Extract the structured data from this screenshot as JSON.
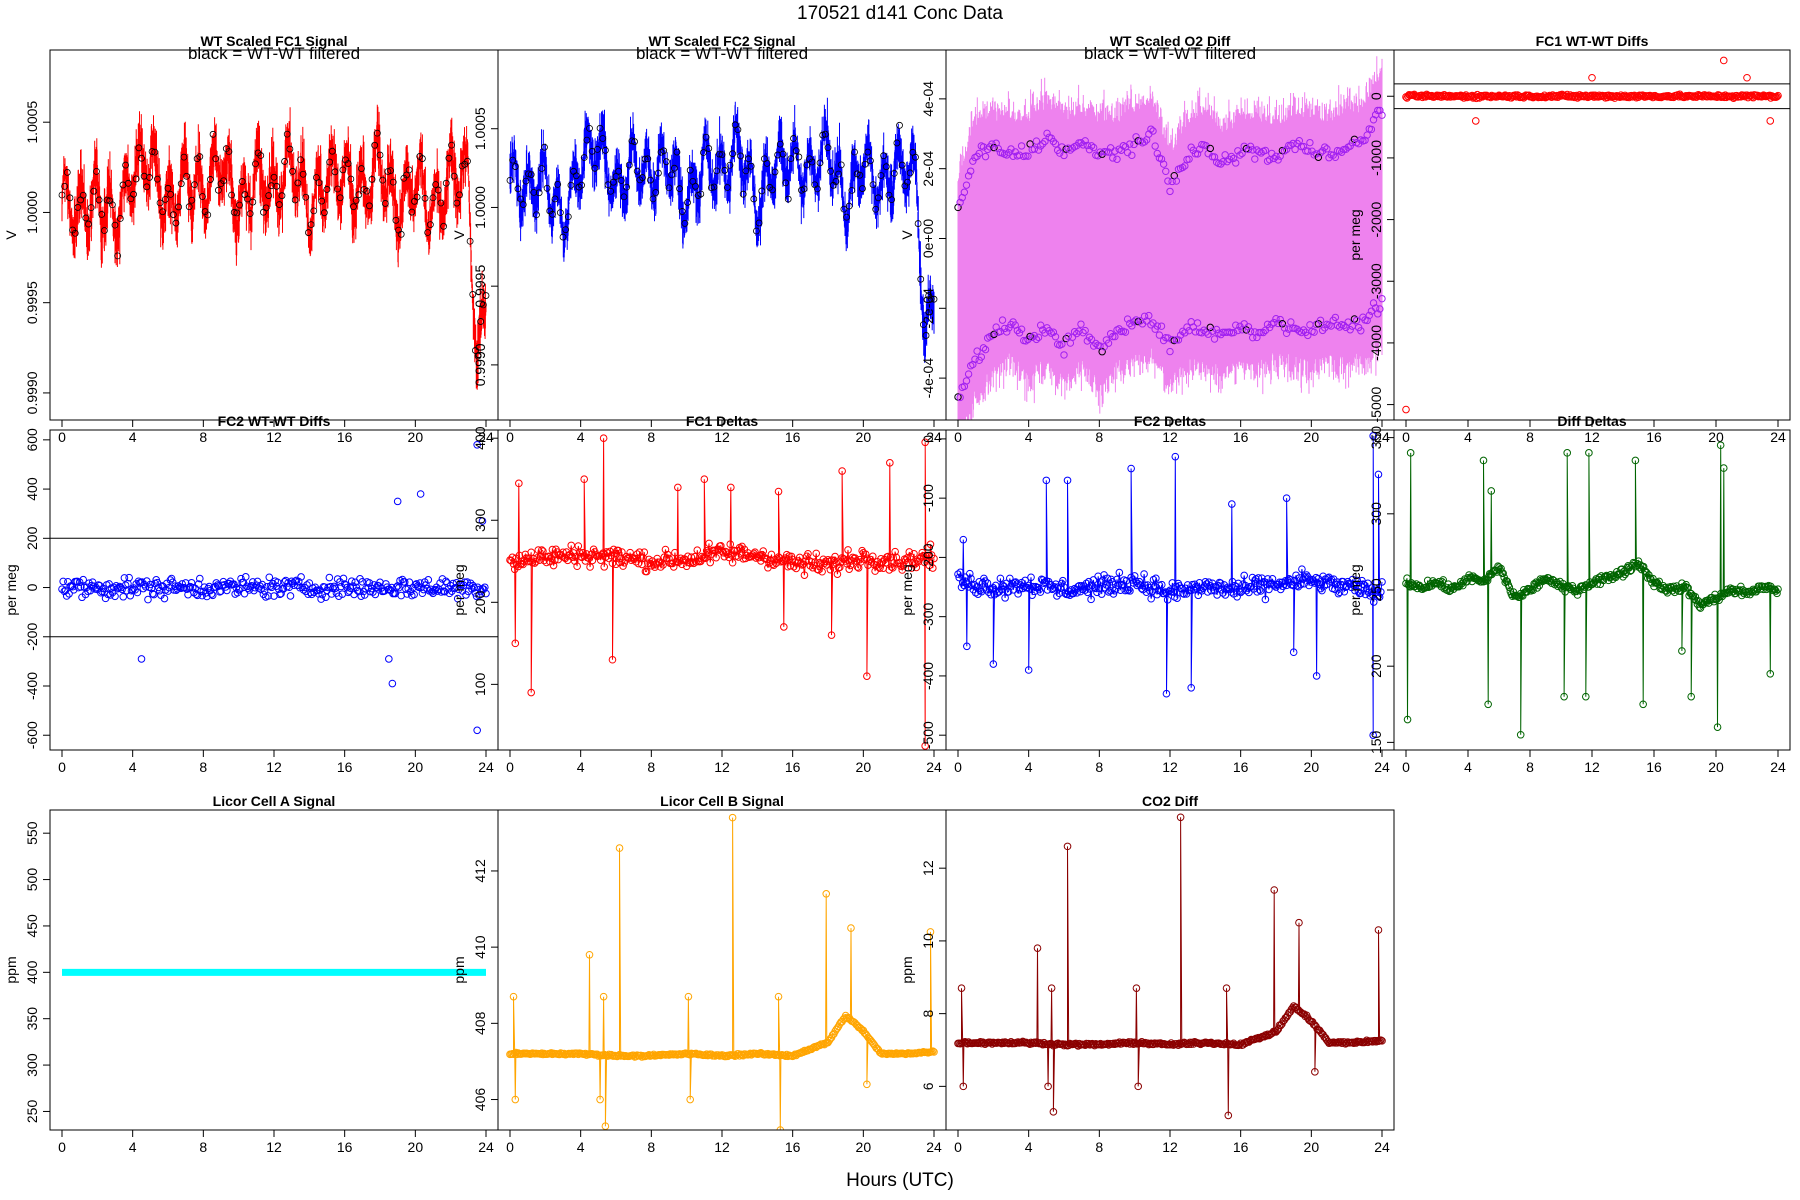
{
  "page": {
    "title": "170521    d141    Conc Data",
    "xlabel": "Hours (UTC)"
  },
  "chart_data": [
    {
      "id": "p1",
      "type": "line",
      "title": "WT Scaled FC1 Signal",
      "subtitle": "black = WT-WT filtered",
      "ylabel": "V",
      "xlim": [
        0,
        24
      ],
      "ylim": [
        0.99885,
        1.0009
      ],
      "yticks": [
        0.999,
        0.9995,
        1.0,
        1.0005
      ],
      "ytick_labels": [
        "0.9990",
        "0.9995",
        "1.0000",
        "1.0005"
      ],
      "color": "#ff0000",
      "overlay_color": "#000000",
      "points": false,
      "noise": 0.00012,
      "x": [
        0,
        1,
        2,
        3,
        4,
        5,
        6,
        7,
        8,
        9,
        10,
        11,
        12,
        13,
        14,
        15,
        16,
        17,
        18,
        19,
        20,
        21,
        22,
        23,
        23.5,
        24
      ],
      "y": [
        1.0001,
        1.0,
        1.0001,
        0.99995,
        1.0002,
        1.0003,
        1.0,
        1.0002,
        1.0001,
        1.0003,
        1.0,
        1.0002,
        1.0001,
        1.0003,
        1.0,
        1.0002,
        1.0002,
        1.0001,
        1.0003,
        1.0,
        1.0002,
        1.0,
        1.0002,
        1.0002,
        0.9991,
        0.9996
      ]
    },
    {
      "id": "p2",
      "type": "line",
      "title": "WT Scaled FC2 Signal",
      "subtitle": "black = WT-WT filtered",
      "ylabel": "V",
      "xlim": [
        0,
        24
      ],
      "ylim": [
        0.99865,
        1.001
      ],
      "yticks": [
        0.999,
        0.9995,
        1.0,
        1.0005
      ],
      "ytick_labels": [
        "0.9990",
        "0.9995",
        "1.0000",
        "1.0005"
      ],
      "color": "#0000ff",
      "overlay_color": "#000000",
      "points": false,
      "noise": 0.00012,
      "x": [
        0,
        1,
        2,
        3,
        4,
        5,
        6,
        7,
        8,
        9,
        10,
        11,
        12,
        13,
        14,
        15,
        16,
        17,
        18,
        19,
        20,
        21,
        22,
        23,
        23.5,
        24
      ],
      "y": [
        1.0002,
        1.0001,
        1.0002,
        0.9999,
        1.0003,
        1.0004,
        1.0001,
        1.0003,
        1.0002,
        1.0003,
        1.0,
        1.0003,
        1.0002,
        1.0004,
        1.0,
        1.0003,
        1.0003,
        1.0002,
        1.0004,
        1.0,
        1.0003,
        1.0001,
        1.0003,
        1.0002,
        0.9991,
        0.9995
      ]
    },
    {
      "id": "p3",
      "type": "line",
      "title": "WT Scaled O2 Diff",
      "subtitle": "black = WT-WT filtered",
      "ylabel": "V",
      "xlim": [
        0,
        24
      ],
      "ylim": [
        -0.00052,
        0.00054
      ],
      "yticks": [
        -0.0004,
        -0.0002,
        0,
        0.0002,
        0.0004
      ],
      "ytick_labels": [
        "-4e-04",
        "-2e-04",
        "0e+00",
        "2e-04",
        "4e-04"
      ],
      "color": "#ee82ee",
      "overlay_color": "#a020f0",
      "points": true,
      "noise": 3e-05,
      "x": [
        0,
        1,
        2,
        3,
        4,
        5,
        6,
        7,
        8,
        9,
        10,
        11,
        12,
        13,
        14,
        15,
        16,
        17,
        18,
        19,
        20,
        21,
        22,
        23,
        24
      ],
      "y_upper": [
        8e-05,
        0.00024,
        0.00026,
        0.00024,
        0.00025,
        0.00029,
        0.00025,
        0.00027,
        0.00024,
        0.00025,
        0.00027,
        0.00029,
        0.00015,
        0.00024,
        0.00026,
        0.00021,
        0.00025,
        0.00025,
        0.00023,
        0.00027,
        0.00025,
        0.00025,
        0.00026,
        0.00028,
        0.00038
      ],
      "y_lower": [
        -0.00046,
        -0.00035,
        -0.00027,
        -0.00024,
        -0.0003,
        -0.00025,
        -0.00031,
        -0.00026,
        -0.00032,
        -0.00027,
        -0.00024,
        -0.00023,
        -0.00031,
        -0.00025,
        -0.00026,
        -0.00028,
        -0.00025,
        -0.00027,
        -0.00024,
        -0.00025,
        -0.00027,
        -0.00024,
        -0.00025,
        -0.00024,
        -0.00018
      ]
    },
    {
      "id": "p4",
      "type": "scatter",
      "title": "FC1 WT-WT Diffs",
      "ylabel": "per meg",
      "xlim": [
        0,
        24
      ],
      "ylim": [
        -5250,
        750
      ],
      "yticks": [
        -5000,
        -4000,
        -3000,
        -2000,
        -1000,
        0
      ],
      "ytick_labels": [
        "-5000",
        "-4000",
        "-3000",
        "-2000",
        "-1000",
        "0"
      ],
      "hlines": [
        200,
        -200
      ],
      "color": "#ff0000",
      "points": true,
      "noise": 40,
      "x": [
        0,
        4,
        8,
        12,
        16,
        20,
        24
      ],
      "y": [
        0,
        0,
        0,
        0,
        0,
        0,
        0
      ],
      "outliers": [
        [
          0,
          -5080
        ],
        [
          4.5,
          -400
        ],
        [
          12,
          300
        ],
        [
          20.5,
          580
        ],
        [
          22,
          300
        ],
        [
          23.5,
          -400
        ]
      ]
    },
    {
      "id": "p5",
      "type": "scatter",
      "title": "FC2 WT-WT Diffs",
      "ylabel": "per meg",
      "xlim": [
        0,
        24
      ],
      "ylim": [
        -660,
        640
      ],
      "yticks": [
        -600,
        -400,
        -200,
        0,
        200,
        400,
        600
      ],
      "ytick_labels": [
        "-600",
        "-400",
        "-200",
        "0",
        "200",
        "400",
        "600"
      ],
      "hlines": [
        200,
        -200
      ],
      "color": "#0000ff",
      "points": true,
      "noise": 60,
      "x": [
        0,
        4,
        8,
        12,
        16,
        20,
        24
      ],
      "y": [
        0,
        0,
        0,
        0,
        0,
        0,
        0
      ],
      "outliers": [
        [
          4.5,
          -290
        ],
        [
          18.5,
          -290
        ],
        [
          18.7,
          -390
        ],
        [
          19,
          350
        ],
        [
          20.3,
          380
        ],
        [
          23.5,
          580
        ],
        [
          23.5,
          -580
        ],
        [
          23.8,
          270
        ]
      ]
    },
    {
      "id": "p6",
      "type": "line",
      "title": "FC1 Deltas",
      "ylabel": "per meg",
      "xlim": [
        0,
        24
      ],
      "ylim": [
        20,
        410
      ],
      "yticks": [
        100,
        200,
        300,
        400
      ],
      "ytick_labels": [
        "100",
        "200",
        "300",
        "400"
      ],
      "color": "#ff0000",
      "points": true,
      "noise": 18,
      "x": [
        0,
        2,
        4,
        6,
        8,
        10,
        12,
        14,
        16,
        18,
        20,
        22,
        24
      ],
      "y": [
        250,
        255,
        258,
        255,
        250,
        252,
        260,
        258,
        248,
        245,
        255,
        250,
        255
      ],
      "spikes": [
        [
          0.3,
          150
        ],
        [
          0.5,
          345
        ],
        [
          1.2,
          90
        ],
        [
          4.2,
          350
        ],
        [
          5.3,
          400
        ],
        [
          5.8,
          130
        ],
        [
          9.5,
          340
        ],
        [
          11,
          350
        ],
        [
          12.5,
          340
        ],
        [
          15.2,
          335
        ],
        [
          15.5,
          170
        ],
        [
          18.2,
          160
        ],
        [
          18.8,
          360
        ],
        [
          20.2,
          110
        ],
        [
          21.5,
          370
        ],
        [
          23.5,
          25
        ],
        [
          23.5,
          395
        ]
      ]
    },
    {
      "id": "p7",
      "type": "line",
      "title": "FC2 Deltas",
      "ylabel": "per meg",
      "xlim": [
        0,
        24
      ],
      "ylim": [
        -525,
        15
      ],
      "yticks": [
        -500,
        -400,
        -300,
        -200,
        -100,
        0
      ],
      "ytick_labels": [
        "-500",
        "-400",
        "-300",
        "-200",
        "-100",
        "0"
      ],
      "color": "#0000ff",
      "points": true,
      "noise": 25,
      "x": [
        0,
        2,
        4,
        6,
        8,
        10,
        12,
        14,
        16,
        18,
        20,
        22,
        24
      ],
      "y": [
        -240,
        -250,
        -245,
        -255,
        -250,
        -240,
        -260,
        -250,
        -255,
        -245,
        -240,
        -250,
        -260
      ],
      "spikes": [
        [
          0.3,
          -170
        ],
        [
          0.5,
          -350
        ],
        [
          2,
          -380
        ],
        [
          4,
          -390
        ],
        [
          5,
          -70
        ],
        [
          6.2,
          -70
        ],
        [
          9.8,
          -50
        ],
        [
          11.8,
          -430
        ],
        [
          12.3,
          -30
        ],
        [
          13.2,
          -420
        ],
        [
          15.5,
          -110
        ],
        [
          18.6,
          -100
        ],
        [
          19,
          -360
        ],
        [
          20.3,
          -400
        ],
        [
          23.5,
          -500
        ],
        [
          23.5,
          5
        ],
        [
          23.8,
          -60
        ]
      ]
    },
    {
      "id": "p8",
      "type": "line",
      "title": "Diff Deltas",
      "ylabel": "per meg",
      "xlim": [
        0,
        24
      ],
      "ylim": [
        145,
        355
      ],
      "yticks": [
        150,
        200,
        250,
        300,
        350
      ],
      "ytick_labels": [
        "150",
        "200",
        "250",
        "300",
        "350"
      ],
      "color": "#006400",
      "points": true,
      "noise": 4,
      "x": [
        0,
        1,
        2,
        3,
        4,
        5,
        6,
        7,
        8,
        9,
        10,
        11,
        12,
        13,
        14,
        15,
        16,
        17,
        18,
        19,
        20,
        21,
        22,
        23,
        24
      ],
      "y": [
        255,
        252,
        255,
        250,
        258,
        255,
        265,
        245,
        250,
        258,
        252,
        250,
        255,
        258,
        262,
        268,
        255,
        250,
        252,
        240,
        245,
        250,
        248,
        252,
        250
      ],
      "spikes": [
        [
          0.1,
          165
        ],
        [
          0.3,
          340
        ],
        [
          5,
          335
        ],
        [
          5.3,
          175
        ],
        [
          5.5,
          315
        ],
        [
          7.4,
          155
        ],
        [
          10.2,
          180
        ],
        [
          10.4,
          340
        ],
        [
          11.6,
          180
        ],
        [
          11.8,
          340
        ],
        [
          14.8,
          335
        ],
        [
          15.3,
          175
        ],
        [
          17.8,
          210
        ],
        [
          18.4,
          180
        ],
        [
          20.1,
          160
        ],
        [
          20.3,
          345
        ],
        [
          20.5,
          330
        ],
        [
          23.5,
          195
        ]
      ]
    },
    {
      "id": "p9",
      "type": "line",
      "title": "Licor Cell A Signal",
      "ylabel": "ppm",
      "xlim": [
        0,
        24
      ],
      "ylim": [
        230,
        575
      ],
      "yticks": [
        250,
        300,
        350,
        400,
        450,
        500,
        550
      ],
      "ytick_labels": [
        "250",
        "300",
        "350",
        "400",
        "450",
        "500",
        "550"
      ],
      "color": "#00ffff",
      "points": false,
      "noise": 0,
      "thick": true,
      "x": [
        0,
        24
      ],
      "y": [
        400,
        400
      ]
    },
    {
      "id": "p10",
      "type": "line",
      "title": "Licor Cell B Signal",
      "ylabel": "ppm",
      "xlim": [
        0,
        24
      ],
      "ylim": [
        405.2,
        413.6
      ],
      "yticks": [
        406,
        408,
        410,
        412
      ],
      "ytick_labels": [
        "406",
        "408",
        "410",
        "412"
      ],
      "color": "#ffa500",
      "points": true,
      "noise": 0.04,
      "x": [
        0,
        2,
        4,
        6,
        8,
        10,
        12,
        14,
        16,
        18,
        19,
        20,
        21,
        22,
        24
      ],
      "y": [
        407.2,
        407.2,
        407.2,
        407.15,
        407.15,
        407.2,
        407.15,
        407.2,
        407.15,
        407.5,
        408.2,
        407.8,
        407.2,
        407.2,
        407.25
      ],
      "spikes": [
        [
          0.2,
          408.7
        ],
        [
          0.3,
          406
        ],
        [
          4.5,
          409.8
        ],
        [
          5.1,
          406
        ],
        [
          5.4,
          405.3
        ],
        [
          5.3,
          408.7
        ],
        [
          6.2,
          412.6
        ],
        [
          10.1,
          408.7
        ],
        [
          10.2,
          406
        ],
        [
          12.6,
          413.4
        ],
        [
          15.3,
          405.2
        ],
        [
          15.2,
          408.7
        ],
        [
          17.9,
          411.4
        ],
        [
          19.3,
          410.5
        ],
        [
          20.2,
          406.4
        ],
        [
          23.8,
          410.4
        ]
      ]
    },
    {
      "id": "p11",
      "type": "line",
      "title": "CO2 Diff",
      "ylabel": "ppm",
      "xlim": [
        0,
        24
      ],
      "ylim": [
        4.8,
        13.6
      ],
      "yticks": [
        6,
        8,
        10,
        12
      ],
      "ytick_labels": [
        "6",
        "8",
        "10",
        "12"
      ],
      "color": "#8b0000",
      "points": true,
      "noise": 0.05,
      "x": [
        0,
        2,
        4,
        6,
        8,
        10,
        12,
        14,
        16,
        18,
        19,
        20,
        21,
        22,
        24
      ],
      "y": [
        7.2,
        7.2,
        7.2,
        7.15,
        7.15,
        7.2,
        7.15,
        7.2,
        7.15,
        7.5,
        8.2,
        7.8,
        7.2,
        7.2,
        7.25
      ],
      "spikes": [
        [
          0.2,
          8.7
        ],
        [
          0.3,
          6
        ],
        [
          4.5,
          9.8
        ],
        [
          5.1,
          6
        ],
        [
          5.4,
          5.3
        ],
        [
          5.3,
          8.7
        ],
        [
          6.2,
          12.6
        ],
        [
          10.1,
          8.7
        ],
        [
          10.2,
          6
        ],
        [
          12.6,
          13.4
        ],
        [
          15.3,
          5.2
        ],
        [
          15.2,
          8.7
        ],
        [
          17.9,
          11.4
        ],
        [
          19.3,
          10.5
        ],
        [
          20.2,
          6.4
        ],
        [
          23.8,
          10.3
        ]
      ]
    }
  ]
}
